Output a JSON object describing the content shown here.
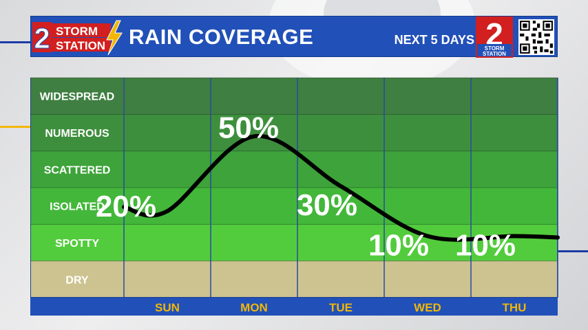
{
  "header": {
    "title": "RAIN COVERAGE",
    "subtitle": "NEXT 5 DAYS",
    "logo_text_storm": "STORM",
    "logo_text_station": "STATION",
    "logo_number": "2"
  },
  "colors": {
    "header_blue": "#2150b8",
    "accent_yellow": "#f2b705",
    "day_label": "#f2b705",
    "curve": "#000000",
    "label_text": "#ffffff"
  },
  "chart_data": {
    "type": "line",
    "categories": [
      "SUN",
      "MON",
      "TUE",
      "WED",
      "THU"
    ],
    "levels": [
      "WIDESPREAD",
      "NUMEROUS",
      "SCATTERED",
      "ISOLATED",
      "SPOTTY",
      "DRY"
    ],
    "level_colors": [
      "#3f7f41",
      "#3e8f3d",
      "#3da33a",
      "#43b73a",
      "#52cc3c",
      "#cdc390"
    ],
    "series": [
      {
        "values": [
          20,
          50,
          30,
          10,
          10
        ],
        "labels": [
          "20%",
          "50%",
          "30%",
          "10%",
          "10%"
        ]
      }
    ],
    "ylim": [
      0,
      100
    ]
  }
}
